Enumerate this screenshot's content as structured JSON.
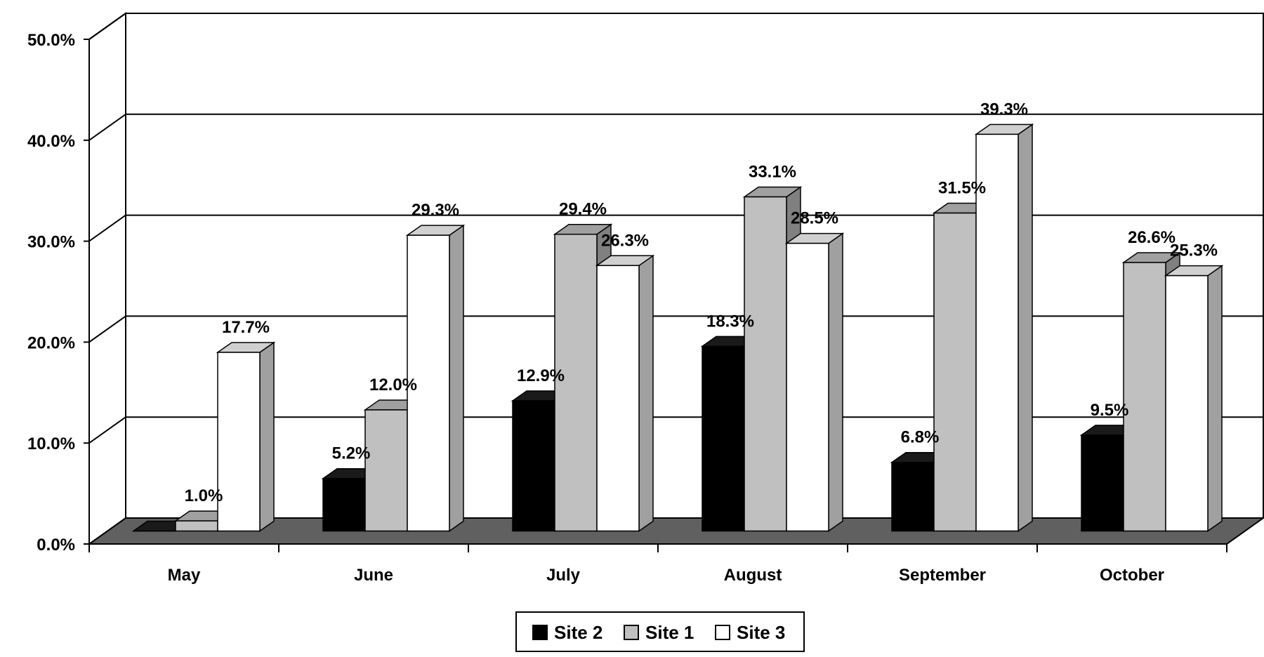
{
  "chart_data": {
    "type": "bar",
    "categories": [
      "May",
      "June",
      "July",
      "August",
      "September",
      "October"
    ],
    "series": [
      {
        "name": "Site 2",
        "values": [
          0.0,
          5.2,
          12.9,
          18.3,
          6.8,
          9.5
        ],
        "labels": [
          "",
          "5.2%",
          "12.9%",
          "18.3%",
          "6.8%",
          "9.5%"
        ],
        "colors": {
          "front": "#000000",
          "top": "#1a1a1a",
          "side": "#333333"
        }
      },
      {
        "name": "Site 1",
        "values": [
          1.0,
          12.0,
          29.4,
          33.1,
          31.5,
          26.6
        ],
        "labels": [
          "1.0%",
          "12.0%",
          "29.4%",
          "33.1%",
          "31.5%",
          "26.6%"
        ],
        "colors": {
          "front": "#c0c0c0",
          "top": "#a0a0a0",
          "side": "#808080"
        }
      },
      {
        "name": "Site 3",
        "values": [
          17.7,
          29.3,
          26.3,
          28.5,
          39.3,
          25.3
        ],
        "labels": [
          "17.7%",
          "29.3%",
          "26.3%",
          "28.5%",
          "39.3%",
          "25.3%"
        ],
        "colors": {
          "front": "#ffffff",
          "top": "#d0d0d0",
          "side": "#a0a0a0"
        }
      }
    ],
    "yticks": [
      "0.0%",
      "10.0%",
      "20.0%",
      "30.0%",
      "40.0%",
      "50.0%"
    ],
    "ylim": [
      0,
      50
    ],
    "grid": true,
    "legend_position": "bottom-center",
    "floor_color": "#606060",
    "three_d": true
  }
}
